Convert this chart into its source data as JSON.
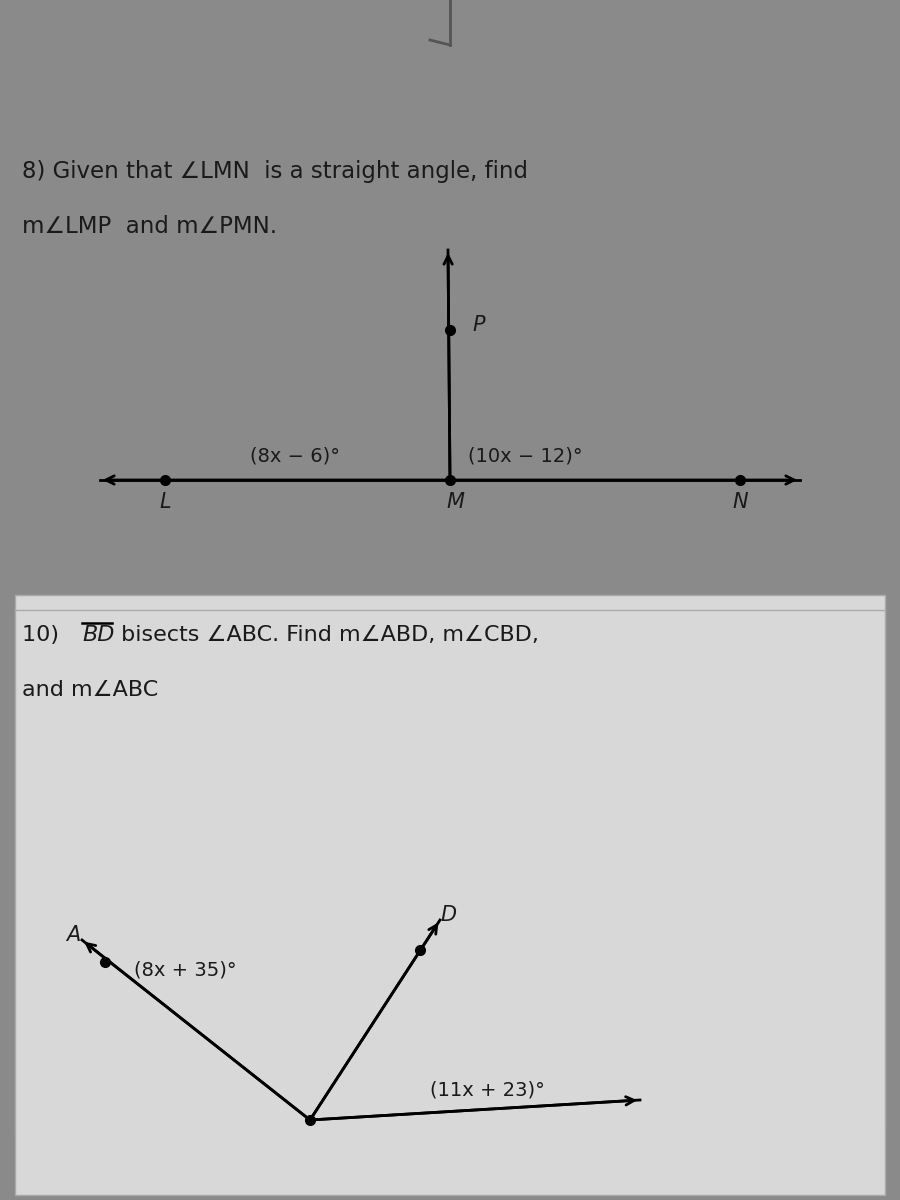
{
  "bg_color": "#8a8a8a",
  "panel_color": "#d8d8d8",
  "text_color": "#1a1a1a",
  "border_color": "#aaaaaa",
  "problem8_line1": "8) Given that ∠LMN  is a straight angle, find",
  "problem8_line2": "m∠LMP  and m∠PMN.",
  "problem8_angle_left": "(8x − 6)°",
  "problem8_angle_right": "(10x − 12)°",
  "p8_L": "L",
  "p8_M": "M",
  "p8_N": "N",
  "p8_P": "P",
  "problem10_line1_pre": "10) ",
  "problem10_line1_BD": "BD",
  "problem10_line1_post": " bisects ∠ABC. Find m∠ABD, m∠CBD,",
  "problem10_line2": "and m∠ABC",
  "problem10_angle_left": "(8x + 35)°",
  "problem10_angle_right": "(11x + 23)°",
  "p10_A": "A",
  "p10_D": "D"
}
